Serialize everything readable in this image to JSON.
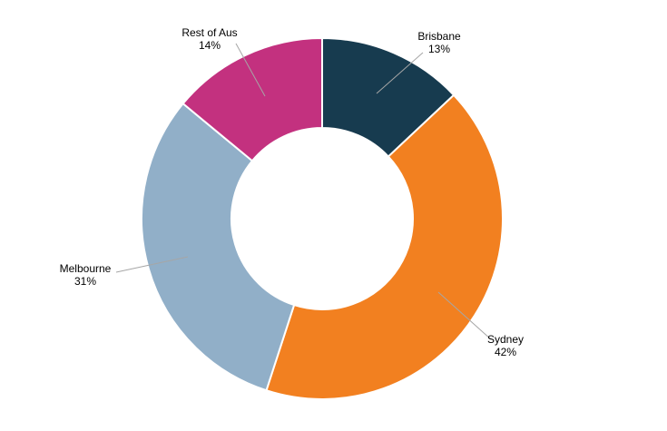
{
  "chart_data": {
    "type": "pie",
    "variant": "donut",
    "title": "",
    "start_angle_deg": 0,
    "direction": "clockwise",
    "slices": [
      {
        "label": "Brisbane",
        "value": 13,
        "value_label": "13%",
        "color": "#173b4f"
      },
      {
        "label": "Sydney",
        "value": 42,
        "value_label": "42%",
        "color": "#f28020"
      },
      {
        "label": "Melbourne",
        "value": 31,
        "value_label": "31%",
        "color": "#91afc8"
      },
      {
        "label": "Rest of Aus",
        "value": 14,
        "value_label": "14%",
        "color": "#c3317f"
      }
    ],
    "legend": "none"
  }
}
